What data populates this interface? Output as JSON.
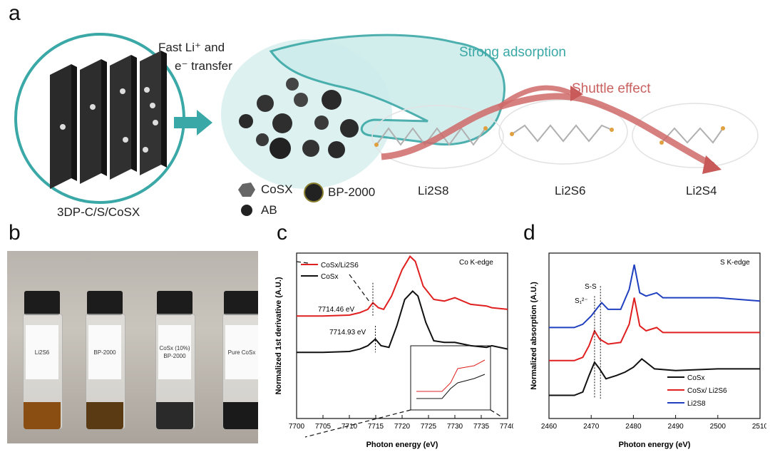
{
  "panels": {
    "a": "a",
    "b": "b",
    "c": "c",
    "d": "d"
  },
  "panel_a": {
    "fast_transfer_1": "Fast Li⁺ and",
    "fast_transfer_2": "e⁻ transfer",
    "electrode_label": "3DP-C/S/CoSX",
    "strong_adsorption": "Strong adsorption",
    "shuttle_effect": "Shuttle effect",
    "legend_cosx": "CoSX",
    "legend_ab": "AB",
    "legend_bp": "BP-2000",
    "species": [
      "Li2S8",
      "Li2S6",
      "Li2S4"
    ],
    "colors": {
      "teal": "#3aa8a6",
      "shuttle": "#c96060",
      "sulfur": "#e0a040"
    }
  },
  "panel_b": {
    "vials": [
      {
        "label": "Li2S6",
        "liquid": "#8a4e12"
      },
      {
        "label": "BP-2000",
        "liquid": "#5a3a12"
      },
      {
        "label": "CoSx (10%) BP-2000",
        "liquid": "#2a2a2a"
      },
      {
        "label": "Pure CoSx",
        "liquid": "#1a1a1a"
      }
    ]
  },
  "chart_data": [
    {
      "type": "line",
      "panel": "c",
      "xlabel": "Photon energy (eV)",
      "ylabel": "Normalized 1st derivative (A.U.)",
      "edge_label": "Co K-edge",
      "xlim": [
        7700,
        7740
      ],
      "xticks": [
        7700,
        7705,
        7710,
        7715,
        7720,
        7725,
        7730,
        7735,
        7740
      ],
      "annotations": [
        "7714.46 eV",
        "7714.93 eV"
      ],
      "series": [
        {
          "name": "CoSx/Li2S6",
          "color": "#e02020",
          "x": [
            7700,
            7705,
            7710,
            7712,
            7713.5,
            7714.46,
            7715.5,
            7716.5,
            7718,
            7720,
            7721.5,
            7722.5,
            7724,
            7726,
            7728,
            7730,
            7733,
            7736,
            7737,
            7740
          ],
          "y": [
            0.62,
            0.62,
            0.625,
            0.64,
            0.66,
            0.7,
            0.67,
            0.66,
            0.74,
            0.9,
            0.98,
            0.95,
            0.8,
            0.72,
            0.71,
            0.73,
            0.69,
            0.68,
            0.67,
            0.66
          ]
        },
        {
          "name": "CoSx",
          "color": "#111111",
          "x": [
            7700,
            7705,
            7710,
            7712,
            7713.5,
            7714.93,
            7716,
            7717.5,
            7719,
            7720.5,
            7722,
            7723,
            7724.5,
            7726,
            7728,
            7730,
            7733,
            7736,
            7737,
            7740
          ],
          "y": [
            0.4,
            0.4,
            0.405,
            0.42,
            0.44,
            0.48,
            0.44,
            0.43,
            0.56,
            0.72,
            0.77,
            0.74,
            0.58,
            0.47,
            0.46,
            0.46,
            0.44,
            0.43,
            0.44,
            0.42
          ]
        }
      ]
    },
    {
      "type": "line",
      "panel": "d",
      "xlabel": "Photon energy (eV)",
      "ylabel": "Normalized absorption (A.U.)",
      "edge_label": "S K-edge",
      "xlim": [
        2460,
        2510
      ],
      "xticks": [
        2460,
        2470,
        2480,
        2490,
        2500,
        2510
      ],
      "annotations": [
        "S-S",
        "S₁²⁻"
      ],
      "series": [
        {
          "name": "CoSx",
          "color": "#111111",
          "x": [
            2460,
            2466,
            2468,
            2469.5,
            2470.8,
            2472,
            2473.5,
            2476,
            2478,
            2480,
            2482,
            2483,
            2485,
            2490,
            2500,
            2510
          ],
          "y": [
            0.14,
            0.14,
            0.16,
            0.26,
            0.34,
            0.3,
            0.24,
            0.26,
            0.28,
            0.31,
            0.36,
            0.34,
            0.3,
            0.29,
            0.3,
            0.3
          ]
        },
        {
          "name": "CoSx/ Li2S6",
          "color": "#e02020",
          "x": [
            2460,
            2466,
            2468,
            2469.5,
            2470.8,
            2472,
            2474,
            2477,
            2479,
            2480.2,
            2481.5,
            2483,
            2485.5,
            2487,
            2490,
            2500,
            2510
          ],
          "y": [
            0.35,
            0.35,
            0.37,
            0.44,
            0.53,
            0.48,
            0.45,
            0.46,
            0.57,
            0.73,
            0.56,
            0.53,
            0.55,
            0.52,
            0.52,
            0.52,
            0.52
          ]
        },
        {
          "name": "Li2S8",
          "color": "#2040c0",
          "x": [
            2460,
            2466,
            2468,
            2470,
            2471.5,
            2472.5,
            2474,
            2477,
            2479,
            2480.2,
            2481.5,
            2483,
            2485.5,
            2487,
            2490,
            2500,
            2510
          ],
          "y": [
            0.55,
            0.55,
            0.57,
            0.62,
            0.67,
            0.7,
            0.66,
            0.66,
            0.78,
            0.93,
            0.76,
            0.74,
            0.76,
            0.73,
            0.73,
            0.73,
            0.71
          ]
        }
      ]
    }
  ]
}
